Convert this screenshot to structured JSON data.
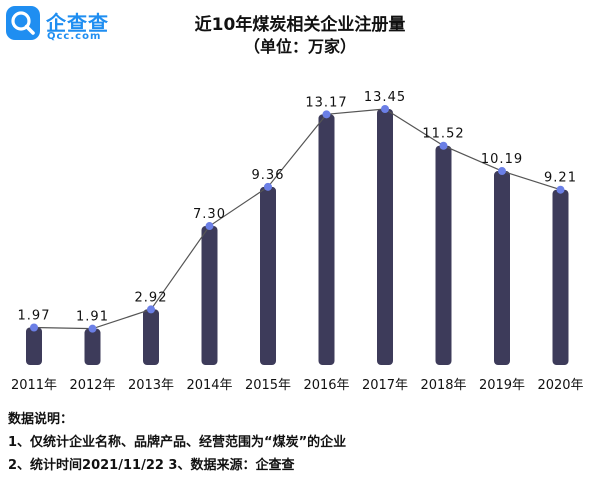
{
  "brand": {
    "name": "企查查",
    "domain": "Qcc.com",
    "color": "#1f8ef1"
  },
  "header": {
    "title": "近10年煤炭相关企业注册量",
    "subtitle": "（单位：万家）"
  },
  "chart_data": {
    "type": "bar",
    "title": "近10年煤炭相关企业注册量",
    "subtitle": "（单位：万家）",
    "categories": [
      "2011年",
      "2012年",
      "2013年",
      "2014年",
      "2015年",
      "2016年",
      "2017年",
      "2018年",
      "2019年",
      "2020年"
    ],
    "values": [
      1.97,
      1.91,
      2.92,
      7.3,
      9.36,
      13.17,
      13.45,
      11.52,
      10.19,
      9.21
    ],
    "data_labels": [
      "1.97",
      "1.91",
      "2.92",
      "7.30",
      "9.36",
      "13.17",
      "13.45",
      "11.52",
      "10.19",
      "9.21"
    ],
    "overlay": "line",
    "grid": false,
    "legend": "none",
    "bar_color": "#3d3b5a",
    "line_color": "#555555",
    "point_color": "#6b7fe6"
  },
  "notes": {
    "heading": "数据说明：",
    "line1": "1、仅统计企业名称、品牌产品、经营范围为“煤炭”的企业",
    "line2": "2、统计时间2021/11/22  3、数据来源：企查查"
  }
}
